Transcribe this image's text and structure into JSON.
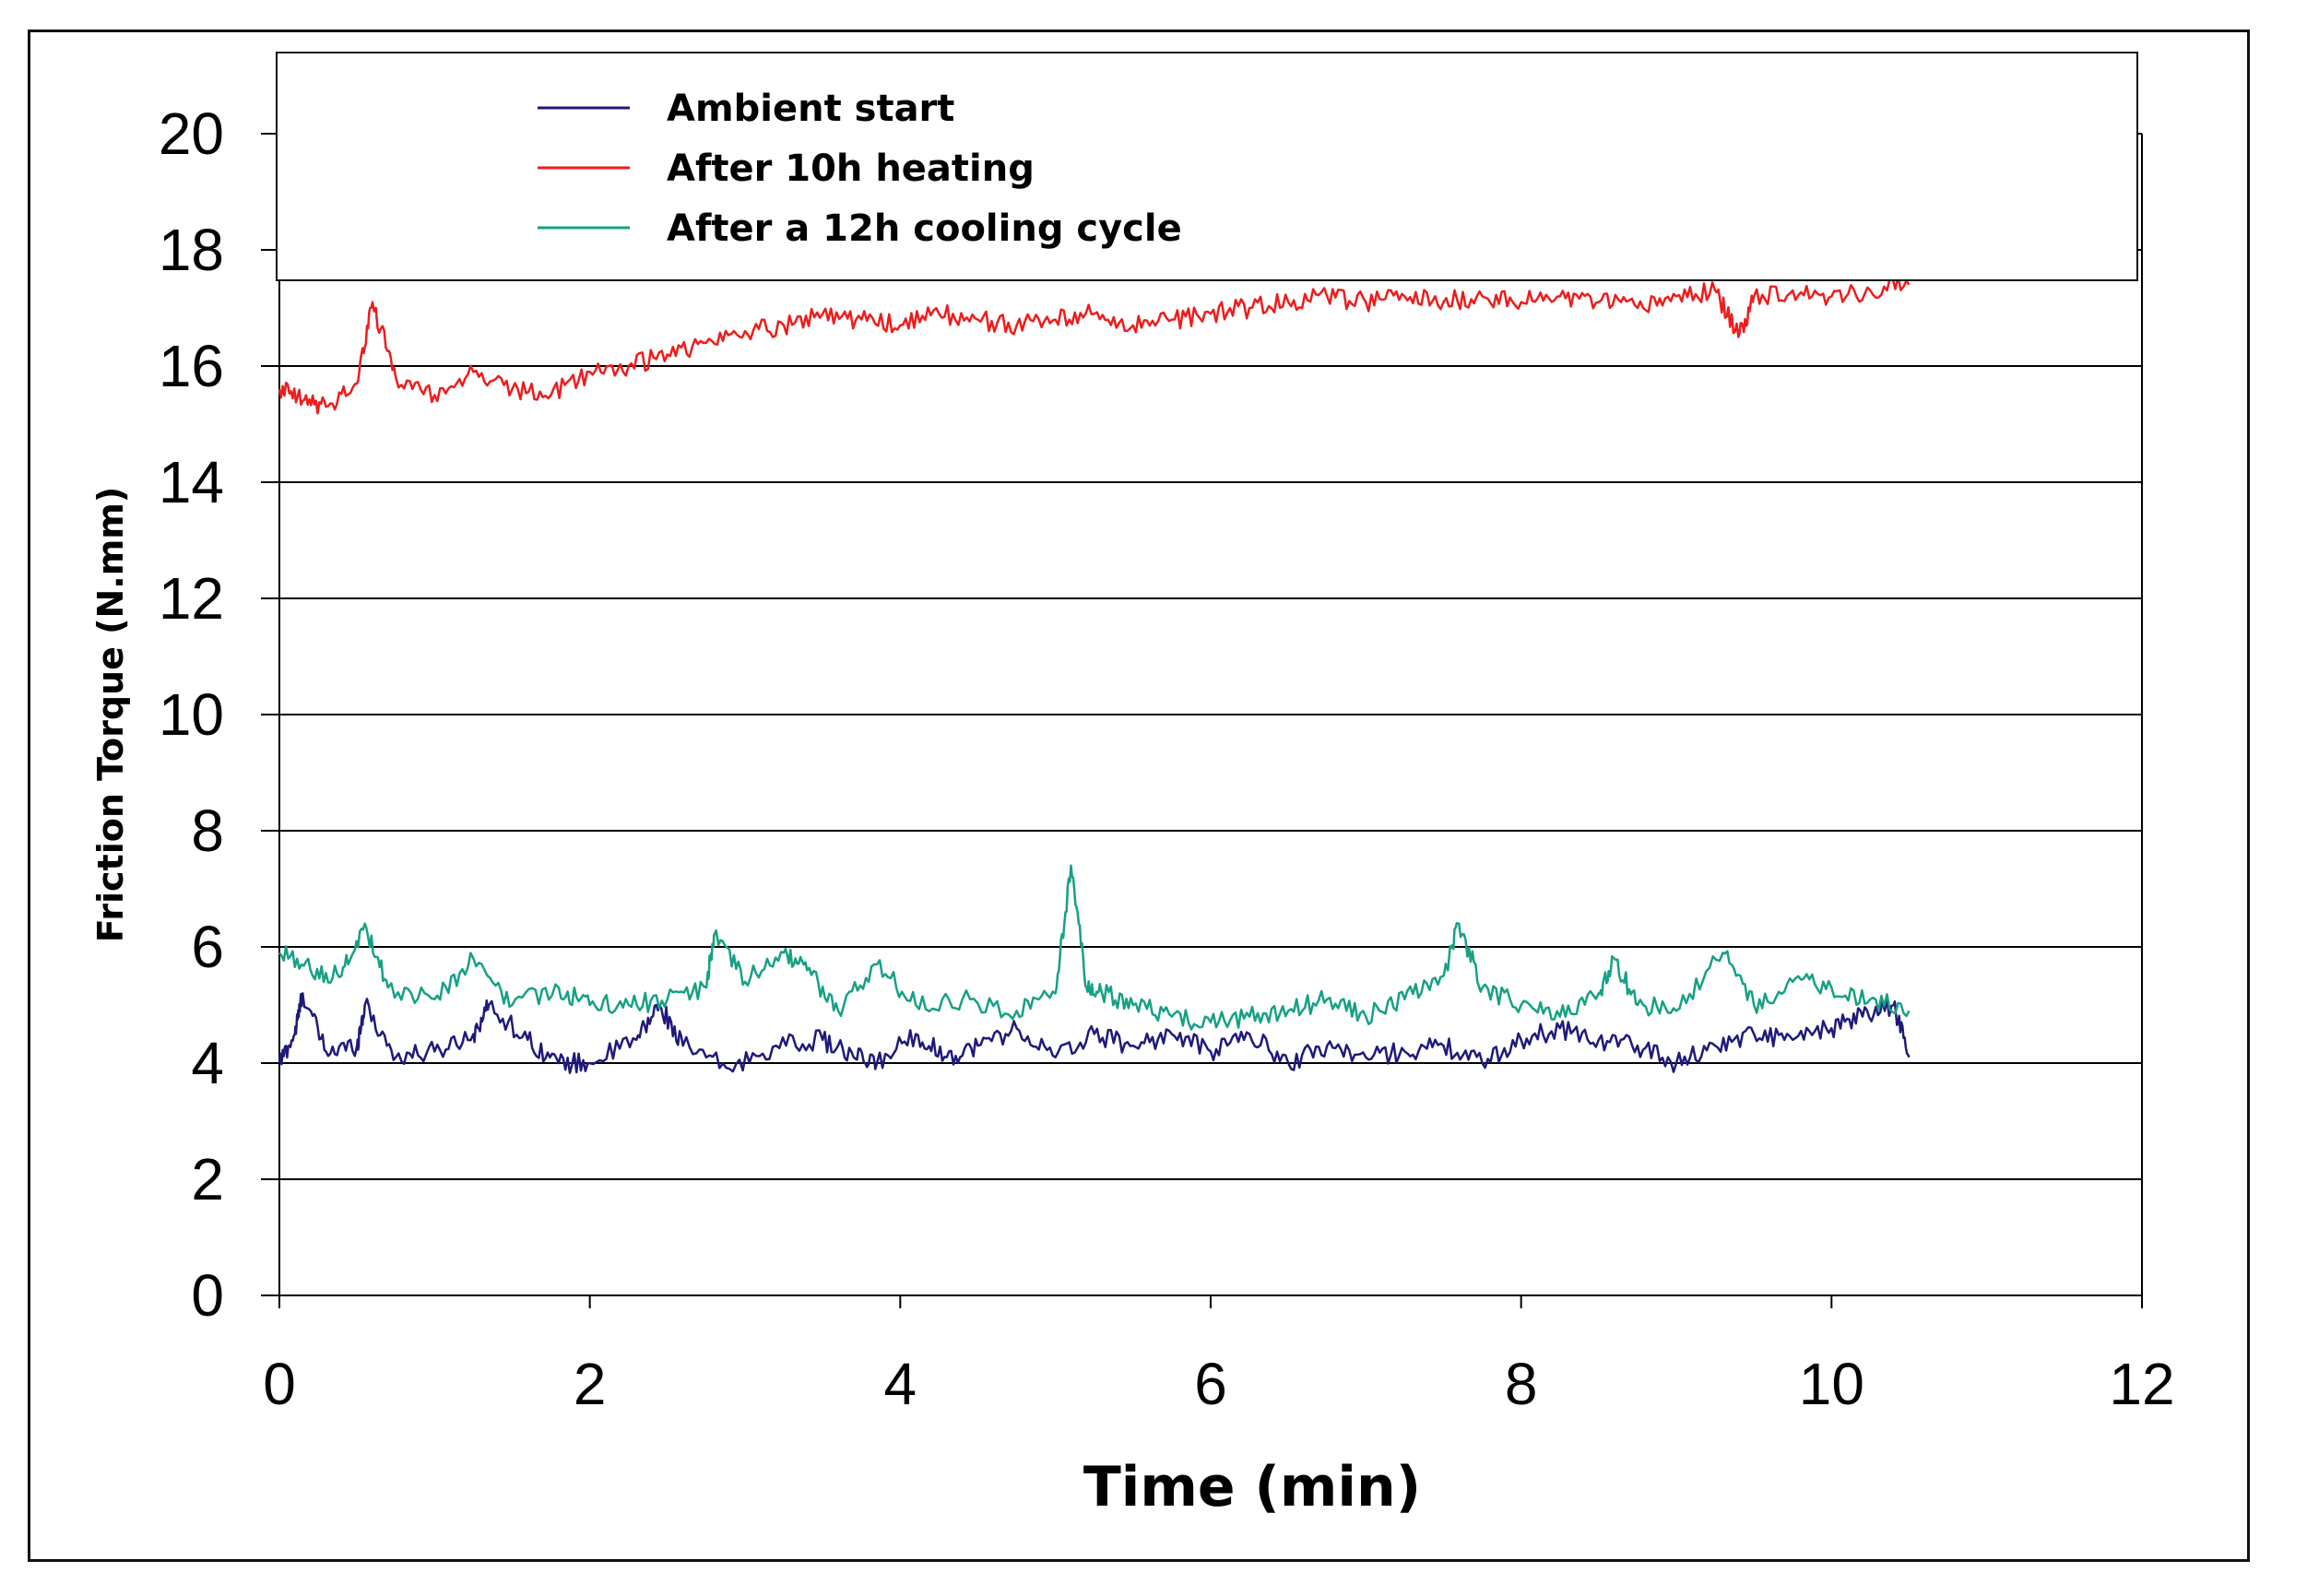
{
  "chart_data": {
    "type": "line",
    "title": "",
    "xlabel": "Time (min)",
    "ylabel": "Friction Torque (N.mm)",
    "xlim": [
      0,
      12
    ],
    "ylim": [
      0,
      20
    ],
    "xticks": [
      "0",
      "2",
      "4",
      "6",
      "8",
      "10",
      "12"
    ],
    "yticks": [
      "0",
      "2",
      "4",
      "6",
      "8",
      "10",
      "12",
      "14",
      "16",
      "18",
      "20"
    ],
    "grid": "horizontal",
    "legend_position": "top",
    "series": [
      {
        "name": "Ambient start",
        "color": "#1f1a7a",
        "x": [
          0,
          0.1,
          0.15,
          0.3,
          0.5,
          0.55,
          0.75,
          1.0,
          1.25,
          1.35,
          1.6,
          1.8,
          2.0,
          2.3,
          2.45,
          2.6,
          2.9,
          3.2,
          3.5,
          3.7,
          3.85,
          4.1,
          4.3,
          4.5,
          4.75,
          5.0,
          5.25,
          5.5,
          5.75,
          6.0,
          6.25,
          6.5,
          6.75,
          7.0,
          7.25,
          7.5,
          7.75,
          8.0,
          8.25,
          8.5,
          8.75,
          9.0,
          9.25,
          9.5,
          9.75,
          10.0,
          10.2,
          10.4,
          10.5
        ],
        "values": [
          4.0,
          4.5,
          5.2,
          4.2,
          4.3,
          5.0,
          4.1,
          4.2,
          4.5,
          5.0,
          4.4,
          4.0,
          4.0,
          4.4,
          5.0,
          4.3,
          3.9,
          4.3,
          4.4,
          4.1,
          4.0,
          4.5,
          4.1,
          4.3,
          4.6,
          4.1,
          4.5,
          4.3,
          4.5,
          4.2,
          4.5,
          4.0,
          4.3,
          4.1,
          4.2,
          4.3,
          4.0,
          4.4,
          4.6,
          4.4,
          4.3,
          4.0,
          4.3,
          4.5,
          4.4,
          4.6,
          4.8,
          5.0,
          4.1
        ]
      },
      {
        "name": "After 10h heating",
        "color": "#ee1c1c",
        "x": [
          0,
          0.15,
          0.3,
          0.5,
          0.6,
          0.75,
          1.0,
          1.25,
          1.5,
          1.75,
          2.0,
          2.25,
          2.5,
          2.75,
          3.0,
          3.25,
          3.5,
          3.75,
          4.0,
          4.25,
          4.5,
          4.75,
          5.0,
          5.25,
          5.5,
          5.75,
          6.0,
          6.25,
          6.5,
          6.75,
          7.0,
          7.25,
          7.5,
          7.75,
          8.0,
          8.25,
          8.5,
          8.75,
          9.0,
          9.25,
          9.4,
          9.5,
          9.75,
          10.0,
          10.25,
          10.5
        ],
        "values": [
          15.6,
          15.4,
          15.3,
          15.7,
          17.1,
          15.8,
          15.5,
          15.9,
          15.6,
          15.5,
          15.9,
          16.0,
          16.2,
          16.4,
          16.6,
          16.7,
          16.9,
          16.8,
          16.7,
          16.9,
          16.8,
          16.7,
          16.8,
          16.9,
          16.7,
          16.8,
          16.9,
          17.0,
          17.1,
          17.2,
          17.1,
          17.2,
          17.1,
          17.2,
          17.1,
          17.2,
          17.1,
          17.0,
          17.2,
          17.3,
          16.5,
          17.2,
          17.3,
          17.2,
          17.3,
          17.4
        ]
      },
      {
        "name": "After a 12h cooling cycle",
        "color": "#16a085",
        "x": [
          0,
          0.2,
          0.4,
          0.55,
          0.7,
          1.0,
          1.25,
          1.5,
          1.8,
          2.0,
          2.25,
          2.5,
          2.75,
          2.8,
          3.0,
          3.25,
          3.4,
          3.6,
          3.85,
          4.1,
          4.4,
          4.75,
          5.0,
          5.1,
          5.2,
          5.3,
          5.5,
          5.75,
          6.0,
          6.25,
          6.5,
          6.75,
          7.0,
          7.25,
          7.5,
          7.6,
          7.75,
          8.0,
          8.25,
          8.5,
          8.6,
          8.75,
          9.0,
          9.3,
          9.5,
          9.75,
          10.0,
          10.25,
          10.5
        ],
        "values": [
          5.9,
          5.6,
          5.5,
          6.4,
          5.3,
          5.1,
          5.8,
          5.0,
          5.3,
          5.0,
          5.0,
          5.1,
          5.3,
          6.2,
          5.4,
          5.9,
          5.6,
          4.9,
          5.7,
          5.0,
          5.1,
          4.9,
          5.2,
          7.4,
          5.3,
          5.2,
          5.0,
          4.8,
          4.7,
          4.8,
          4.9,
          5.1,
          4.8,
          5.1,
          5.5,
          6.4,
          5.3,
          5.0,
          4.8,
          5.2,
          5.8,
          5.0,
          4.9,
          5.9,
          5.0,
          5.4,
          5.3,
          5.1,
          4.9
        ]
      }
    ]
  }
}
